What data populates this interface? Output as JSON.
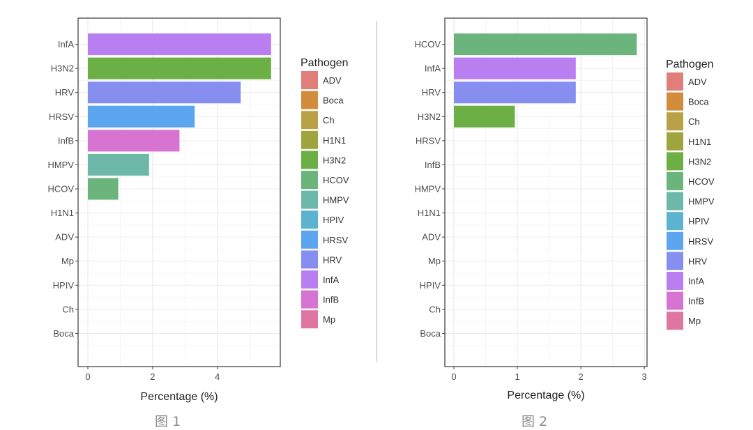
{
  "chart_data": [
    {
      "type": "bar",
      "orientation": "horizontal",
      "caption": "图 1",
      "xlabel": "Percentage (%)",
      "ylabel": "",
      "xlim": [
        0,
        5.9
      ],
      "xticks": [
        0,
        2,
        4
      ],
      "grid": true,
      "categories": [
        "InfA",
        "H3N2",
        "HRV",
        "HRSV",
        "InfB",
        "HMPV",
        "HCOV",
        "H1N1",
        "ADV",
        "Mp",
        "HPIV",
        "Ch",
        "Boca"
      ],
      "values": [
        5.66,
        5.66,
        4.72,
        3.3,
        2.83,
        1.89,
        0.94,
        0,
        0,
        0,
        0,
        0,
        0
      ],
      "legend": {
        "title": "Pathogen",
        "position": "right"
      }
    },
    {
      "type": "bar",
      "orientation": "horizontal",
      "caption": "图 2",
      "xlabel": "Percentage (%)",
      "ylabel": "",
      "xlim": [
        0,
        3.02
      ],
      "xticks": [
        0,
        1,
        2,
        3
      ],
      "grid": true,
      "categories": [
        "HCOV",
        "InfA",
        "HRV",
        "H3N2",
        "HRSV",
        "InfB",
        "HMPV",
        "H1N1",
        "ADV",
        "Mp",
        "HPIV",
        "Ch",
        "Boca"
      ],
      "values": [
        2.88,
        1.92,
        1.92,
        0.96,
        0,
        0,
        0,
        0,
        0,
        0,
        0,
        0,
        0
      ],
      "legend": {
        "title": "Pathogen",
        "position": "right"
      }
    }
  ],
  "legend_items": [
    {
      "label": "ADV",
      "color": "#e07f7a"
    },
    {
      "label": "Boca",
      "color": "#d28c3c"
    },
    {
      "label": "Ch",
      "color": "#b9a145"
    },
    {
      "label": "H1N1",
      "color": "#9ea43e"
    },
    {
      "label": "H3N2",
      "color": "#6cb045"
    },
    {
      "label": "HCOV",
      "color": "#6bb57d"
    },
    {
      "label": "HMPV",
      "color": "#6cb8a9"
    },
    {
      "label": "HPIV",
      "color": "#5cb3d0"
    },
    {
      "label": "HRSV",
      "color": "#5ba6ee"
    },
    {
      "label": "HRV",
      "color": "#868ff0"
    },
    {
      "label": "InfA",
      "color": "#b97ff0"
    },
    {
      "label": "InfB",
      "color": "#d774d1"
    },
    {
      "label": "Mp",
      "color": "#df76a2"
    }
  ]
}
